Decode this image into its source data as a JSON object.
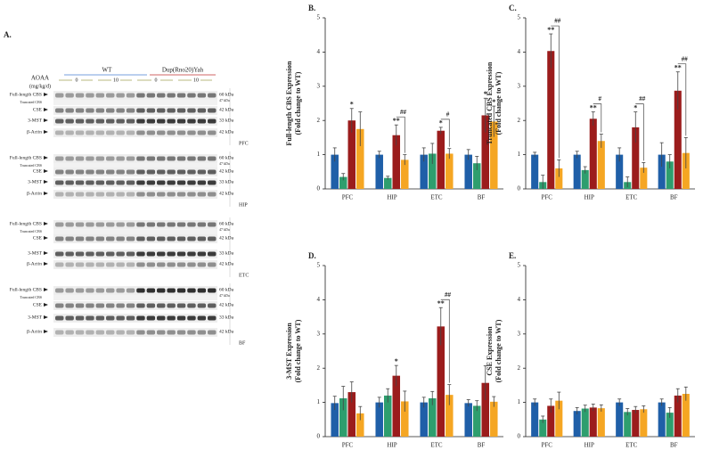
{
  "blot": {
    "panel": "A.",
    "groups": [
      "WT",
      "Dup(Rno20)Yah"
    ],
    "treatment": [
      "AOAA",
      "(mg/kg/d)"
    ],
    "doses": [
      "0",
      "10",
      "0",
      "10"
    ],
    "regions": [
      {
        "name": "PFC",
        "rows": [
          {
            "label": "Full-length CBS",
            "sub": "Truncated CBS",
            "kda": "60 kDa",
            "kda2": "47 kDa"
          },
          {
            "label": "CSE",
            "kda": "42 kDa"
          },
          {
            "label": "3-MST",
            "kda": "33 kDa"
          },
          {
            "label": "β-Actin",
            "kda": "42 kDa"
          }
        ]
      },
      {
        "name": "HIP",
        "rows": [
          {
            "label": "Full-length CBS",
            "sub": "Truncated CBS",
            "kda": "60 kDa",
            "kda2": "47 kDa"
          },
          {
            "label": "CSE",
            "kda": "42 kDa"
          },
          {
            "label": "3-MST",
            "kda": "33 kDa"
          },
          {
            "label": "β-Actin",
            "kda": "42 kDa"
          }
        ]
      },
      {
        "name": "ETC",
        "rows": [
          {
            "label": "Full-length CBS",
            "sub": "Truncated CBS",
            "kda": "60 kDa",
            "kda2": "47 kDa"
          },
          {
            "label": "CSE",
            "kda": "42 kDa"
          },
          {
            "label": "3-MST",
            "kda": "33 kDa"
          },
          {
            "label": "β-Actin",
            "kda": "42 kDa"
          }
        ]
      },
      {
        "name": "BF",
        "rows": [
          {
            "label": "Full-length CBS",
            "sub": "Truncated CBS",
            "kda": "60 kDa",
            "kda2": "47 kDa"
          },
          {
            "label": "CSE",
            "kda": "42 kDa"
          },
          {
            "label": "3-MST",
            "kda": "33 kDa"
          },
          {
            "label": "β-Actin",
            "kda": "42 kDa"
          }
        ]
      }
    ]
  },
  "chart_data": [
    {
      "type": "bar",
      "panel": "B.",
      "ylabel": [
        "Full-length CBS Expression",
        "(Fold change to WT)"
      ],
      "categories": [
        "PFC",
        "HIP",
        "ETC",
        "BF"
      ],
      "ylim": [
        0,
        5
      ],
      "yticks": [
        0,
        1,
        2,
        3,
        4,
        5
      ],
      "series": [
        {
          "color": "#1f5fa8",
          "values": [
            1.0,
            1.0,
            1.0,
            1.0
          ],
          "errors": [
            0.2,
            0.1,
            0.2,
            0.15
          ],
          "stars": [
            null,
            null,
            null,
            null
          ]
        },
        {
          "color": "#2e9e6e",
          "values": [
            0.35,
            0.32,
            1.03,
            0.75
          ],
          "errors": [
            0.1,
            0.05,
            0.3,
            0.2
          ],
          "stars": [
            null,
            null,
            null,
            null
          ]
        },
        {
          "color": "#9b1c1c",
          "values": [
            2.0,
            1.57,
            1.7,
            2.15
          ],
          "errors": [
            0.35,
            0.3,
            0.1,
            0.5
          ],
          "stars": [
            "*",
            "**",
            "*",
            "*"
          ]
        },
        {
          "color": "#f5a623",
          "values": [
            1.75,
            0.85,
            1.03,
            1.97
          ],
          "errors": [
            0.5,
            0.15,
            0.15,
            0.45
          ],
          "stars": [
            null,
            null,
            null,
            "*"
          ]
        }
      ],
      "brackets": [
        {
          "category": 1,
          "text": "##"
        },
        {
          "category": 2,
          "text": "#"
        }
      ]
    },
    {
      "type": "bar",
      "panel": "C.",
      "ylabel": [
        "Truncated CBS Expression",
        "(Fold change to WT)"
      ],
      "categories": [
        "PFC",
        "HIP",
        "ETC",
        "BF"
      ],
      "ylim": [
        0,
        5
      ],
      "yticks": [
        0,
        1,
        2,
        3,
        4,
        5
      ],
      "series": [
        {
          "color": "#1f5fa8",
          "values": [
            1.0,
            1.0,
            1.0,
            1.0
          ],
          "errors": [
            0.07,
            0.1,
            0.2,
            0.35
          ],
          "stars": [
            null,
            null,
            null,
            null
          ]
        },
        {
          "color": "#2e9e6e",
          "values": [
            0.2,
            0.55,
            0.2,
            0.8
          ],
          "errors": [
            0.2,
            0.1,
            0.15,
            0.2
          ],
          "stars": [
            null,
            null,
            null,
            null
          ]
        },
        {
          "color": "#9b1c1c",
          "values": [
            4.03,
            2.05,
            1.8,
            2.87
          ],
          "errors": [
            0.5,
            0.2,
            0.45,
            0.55
          ],
          "stars": [
            "**",
            "**",
            "*",
            "**"
          ]
        },
        {
          "color": "#f5a623",
          "values": [
            0.6,
            1.4,
            0.62,
            1.05
          ],
          "errors": [
            0.25,
            0.2,
            0.15,
            0.45
          ],
          "stars": [
            null,
            null,
            null,
            null
          ]
        }
      ],
      "brackets": [
        {
          "category": 0,
          "text": "##"
        },
        {
          "category": 1,
          "text": "#"
        },
        {
          "category": 2,
          "text": "##"
        },
        {
          "category": 3,
          "text": "##"
        }
      ]
    },
    {
      "type": "bar",
      "panel": "D.",
      "ylabel": [
        "3-MST Expression",
        "(Fold change to WT)"
      ],
      "categories": [
        "PFC",
        "HIP",
        "ETC",
        "BF"
      ],
      "ylim": [
        0,
        5
      ],
      "yticks": [
        0,
        1,
        2,
        3,
        4,
        5
      ],
      "series": [
        {
          "color": "#1f5fa8",
          "values": [
            0.98,
            1.0,
            1.0,
            0.98
          ],
          "errors": [
            0.2,
            0.15,
            0.15,
            0.1
          ],
          "stars": [
            null,
            null,
            null,
            null
          ]
        },
        {
          "color": "#2e9e6e",
          "values": [
            1.12,
            1.2,
            1.12,
            0.9
          ],
          "errors": [
            0.35,
            0.2,
            0.2,
            0.15
          ],
          "stars": [
            null,
            null,
            null,
            null
          ]
        },
        {
          "color": "#9b1c1c",
          "values": [
            1.3,
            1.78,
            3.22,
            1.57
          ],
          "errors": [
            0.3,
            0.3,
            0.55,
            0.5
          ],
          "stars": [
            null,
            "*",
            "**",
            null
          ]
        },
        {
          "color": "#f5a623",
          "values": [
            0.68,
            1.03,
            1.22,
            1.02
          ],
          "errors": [
            0.2,
            0.3,
            0.3,
            0.15
          ],
          "stars": [
            null,
            null,
            null,
            null
          ]
        }
      ],
      "brackets": [
        {
          "category": 2,
          "text": "##"
        }
      ]
    },
    {
      "type": "bar",
      "panel": "E.",
      "ylabel": [
        "CSE Expression",
        "(Fold change to WT)"
      ],
      "categories": [
        "PFC",
        "HIP",
        "ETC",
        "BF"
      ],
      "ylim": [
        0,
        5
      ],
      "yticks": [
        0,
        1,
        2,
        3,
        4,
        5
      ],
      "series": [
        {
          "color": "#1f5fa8",
          "values": [
            1.0,
            0.75,
            1.0,
            1.0
          ],
          "errors": [
            0.1,
            0.1,
            0.1,
            0.1
          ],
          "stars": [
            null,
            null,
            null,
            null
          ]
        },
        {
          "color": "#2e9e6e",
          "values": [
            0.5,
            0.82,
            0.72,
            0.7
          ],
          "errors": [
            0.1,
            0.1,
            0.1,
            0.15
          ],
          "stars": [
            null,
            null,
            null,
            null
          ]
        },
        {
          "color": "#9b1c1c",
          "values": [
            0.9,
            0.85,
            0.78,
            1.2
          ],
          "errors": [
            0.2,
            0.1,
            0.1,
            0.2
          ],
          "stars": [
            null,
            null,
            null,
            null
          ]
        },
        {
          "color": "#f5a623",
          "values": [
            1.05,
            0.83,
            0.8,
            1.25
          ],
          "errors": [
            0.25,
            0.1,
            0.1,
            0.2
          ],
          "stars": [
            null,
            null,
            null,
            null
          ]
        }
      ],
      "brackets": []
    }
  ]
}
